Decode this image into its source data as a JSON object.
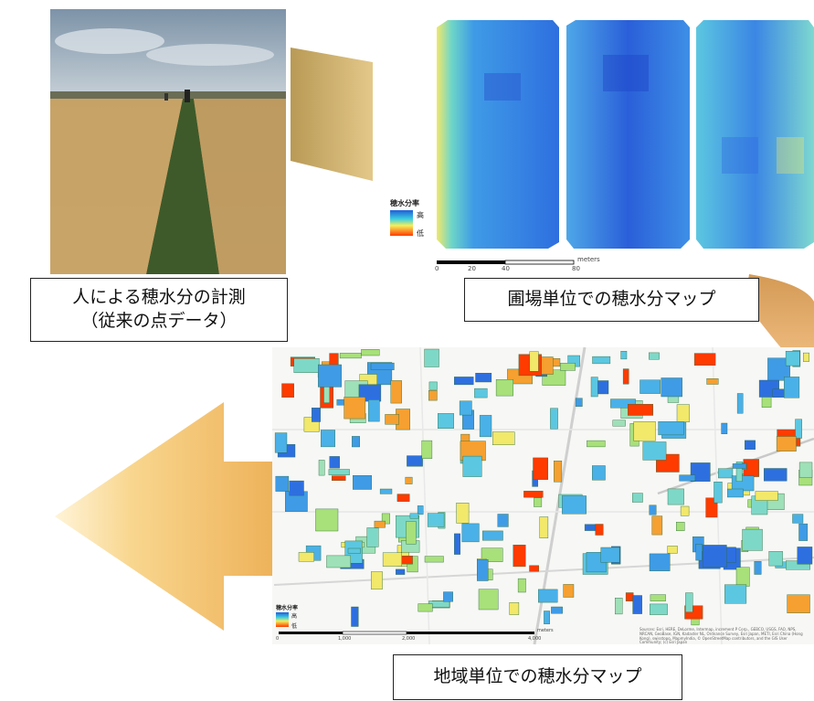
{
  "captions": {
    "photo_line1": "人による穂水分の計測",
    "photo_line2": "（従来の点データ）",
    "field_map": "圃場単位での穂水分マップ",
    "region_map": "地域単位での穂水分マップ"
  },
  "field_legend": {
    "title": "穂水分率",
    "high": "高",
    "low": "低"
  },
  "field_scale": {
    "ticks": [
      "0",
      "20",
      "40",
      "80"
    ],
    "unit": "meters"
  },
  "region_legend": {
    "title": "穂水分率",
    "high": "高",
    "low": "低"
  },
  "region_scale": {
    "ticks": [
      "0",
      "1,000",
      "2,000",
      "4,000"
    ],
    "unit": "meters"
  },
  "region_credits": "Sources: Esri, HERE, DeLorme, Intermap, increment P Corp., GEBCO, USGS, FAO, NPS, NRCAN, GeoBase, IGN, Kadaster NL, Ordnance Survey, Esri Japan, METI, Esri China (Hong Kong), swisstopo, MapmyIndia, © OpenStreetMap contributors, and the GIS User Community; (c) Esri Japan",
  "colors": {
    "arrow_tan": "#c9a75a",
    "arrow_gold": "#f3c06a",
    "moisture_high": "#1e5fd8",
    "moisture_low": "#ff3b00"
  }
}
